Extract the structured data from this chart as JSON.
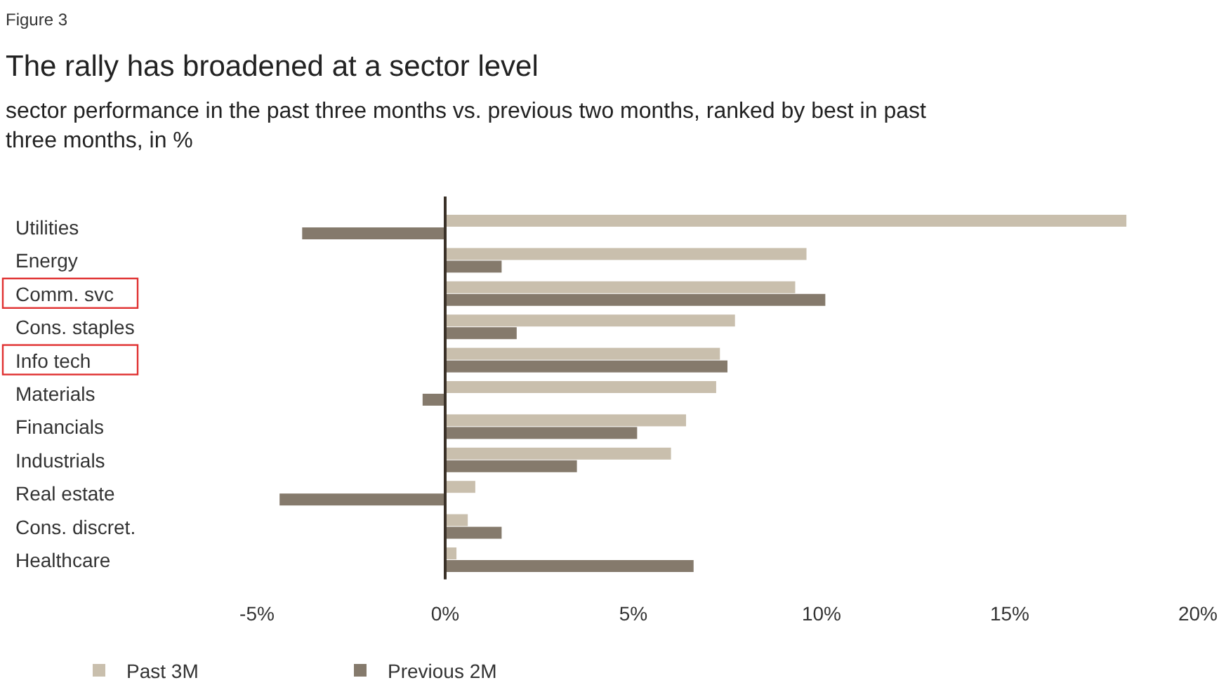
{
  "chart_data": {
    "type": "bar",
    "orientation": "horizontal",
    "title": "The rally has broadened at a sector level",
    "subtitle": "sector performance in the past three months vs. previous two months, ranked by best in past three months, in %",
    "annotations": [
      "Figure 3"
    ],
    "categories": [
      "Utilities",
      "Energy",
      "Comm. svc",
      "Cons. staples",
      "Info tech",
      "Materials",
      "Financials",
      "Industrials",
      "Real estate",
      "Cons. discret.",
      "Healthcare"
    ],
    "series": [
      {
        "name": "Past 3M",
        "color": "#c9bfad",
        "values": [
          18.1,
          9.6,
          9.3,
          7.7,
          7.3,
          7.2,
          6.4,
          6.0,
          0.8,
          0.6,
          0.3
        ]
      },
      {
        "name": "Previous 2M",
        "color": "#857a6c",
        "values": [
          -3.8,
          1.5,
          10.1,
          1.9,
          7.5,
          -0.6,
          5.1,
          3.5,
          -4.4,
          1.5,
          6.6
        ]
      }
    ],
    "xlim": [
      -5,
      20
    ],
    "xticks": [
      {
        "value": -5,
        "label": "-5%"
      },
      {
        "value": 0,
        "label": "0%"
      },
      {
        "value": 5,
        "label": "5%"
      },
      {
        "value": 10,
        "label": "10%"
      },
      {
        "value": 15,
        "label": "15%"
      },
      {
        "value": 20,
        "label": "20%"
      }
    ],
    "legend": "bottom"
  }
}
